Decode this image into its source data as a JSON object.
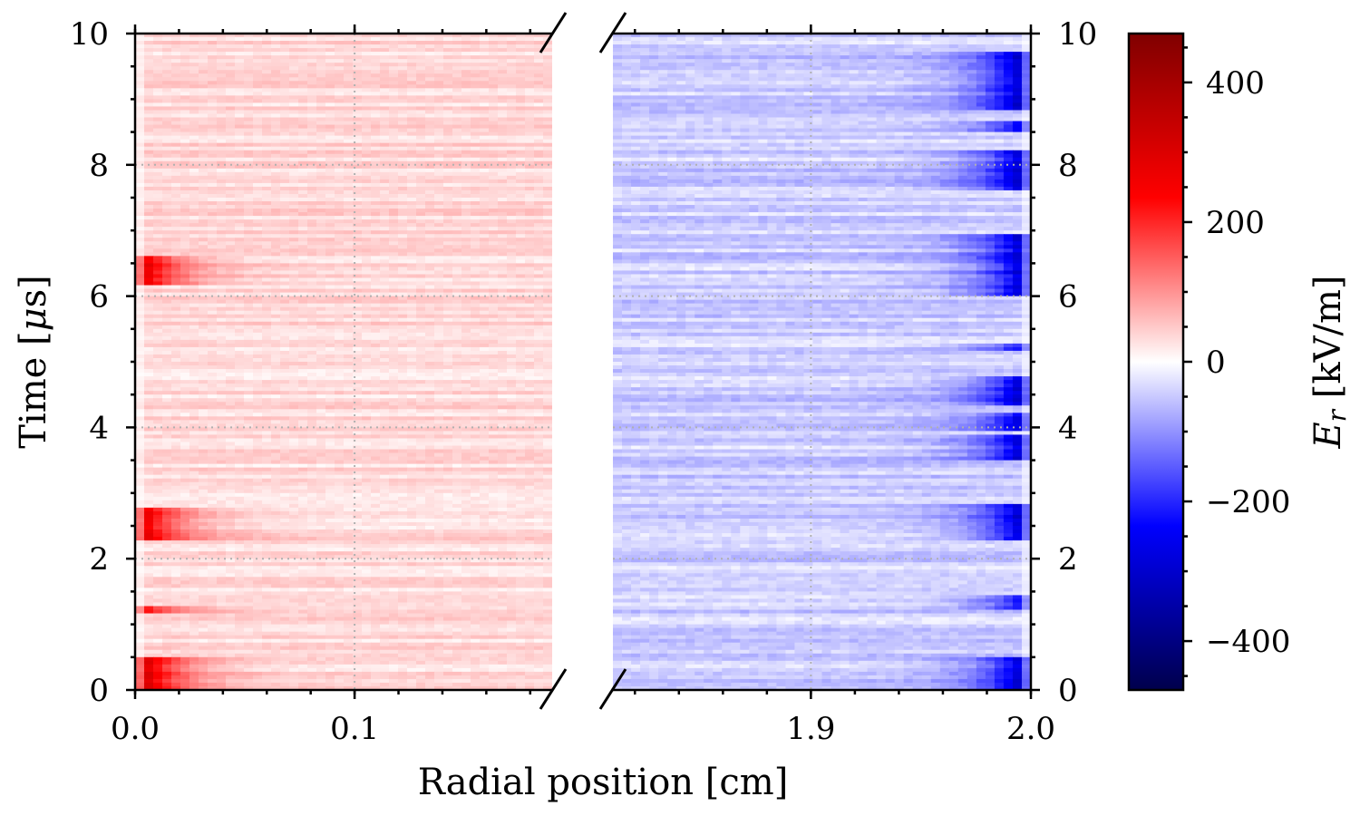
{
  "chart_data": {
    "type": "heatmap",
    "xlabel": "Radial position [cm]",
    "ylabel": "Time [μs]",
    "ylabel_parts": [
      "Time [",
      "μ",
      "s]"
    ],
    "colorbar_label_parts": [
      "E",
      "r",
      " [kV/m]"
    ],
    "ylim": [
      0,
      10
    ],
    "y_ticks": [
      "0",
      "2",
      "4",
      "6",
      "8",
      "10"
    ],
    "y_tick_values": [
      0,
      2,
      4,
      6,
      8,
      10
    ],
    "grid": true,
    "colormap": "seismic",
    "color_range": [
      -470,
      470
    ],
    "colormap_stops": [
      "#00004c",
      "#0000ff",
      "#ffffff",
      "#ff0000",
      "#800000"
    ],
    "colorbar_ticks": [
      "400",
      "200",
      "0",
      "−200",
      "−400"
    ],
    "colorbar_tick_values": [
      400,
      200,
      0,
      -200,
      -400
    ],
    "panels": [
      {
        "name": "inner",
        "xlim": [
          0.0,
          0.19
        ],
        "x_ticks": [
          "0.0",
          "0.1"
        ],
        "x_tick_values": [
          0.0,
          0.1
        ],
        "base_field": 35,
        "bursts": [
          {
            "t_start": 0.0,
            "t_end": 0.5,
            "peak": 360
          },
          {
            "t_start": 1.18,
            "t_end": 1.3,
            "peak": 260
          },
          {
            "t_start": 2.3,
            "t_end": 2.8,
            "peak": 330
          },
          {
            "t_start": 6.15,
            "t_end": 6.6,
            "peak": 330
          }
        ]
      },
      {
        "name": "outer",
        "xlim": [
          1.81,
          2.0
        ],
        "x_ticks": [
          "1.9",
          "2.0"
        ],
        "x_tick_values": [
          1.9,
          2.0
        ],
        "base_field": -45,
        "bursts": [
          {
            "t_start": 0.0,
            "t_end": 0.5,
            "peak": -330
          },
          {
            "t_start": 1.25,
            "t_end": 1.42,
            "peak": -260
          },
          {
            "t_start": 2.3,
            "t_end": 2.85,
            "peak": -330
          },
          {
            "t_start": 3.5,
            "t_end": 3.9,
            "peak": -330
          },
          {
            "t_start": 3.95,
            "t_end": 4.2,
            "peak": -300
          },
          {
            "t_start": 4.35,
            "t_end": 4.8,
            "peak": -340
          },
          {
            "t_start": 5.15,
            "t_end": 5.3,
            "peak": -250
          },
          {
            "t_start": 6.0,
            "t_end": 6.95,
            "peak": -330
          },
          {
            "t_start": 7.6,
            "t_end": 8.2,
            "peak": -330
          },
          {
            "t_start": 8.5,
            "t_end": 8.65,
            "peak": -280
          },
          {
            "t_start": 8.85,
            "t_end": 9.7,
            "peak": -340
          }
        ]
      }
    ]
  }
}
